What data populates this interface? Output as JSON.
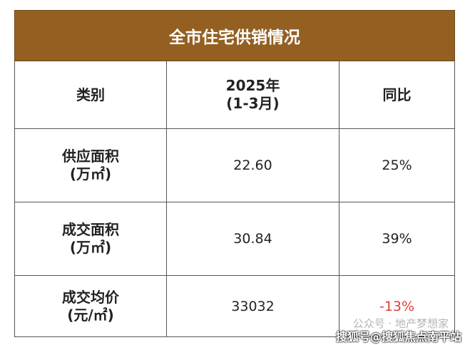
{
  "table": {
    "title": "全市住宅供销情况",
    "header": [
      [
        "类别"
      ],
      [
        "2025年",
        "(1-3月)"
      ],
      [
        "同比"
      ]
    ],
    "rows": [
      [
        [
          "供应面积",
          "(万㎡)"
        ],
        "22.60",
        "25%"
      ],
      [
        [
          "成交面积",
          "(万㎡)"
        ],
        "30.84",
        "39%"
      ],
      [
        [
          "成交均价",
          "(元/㎡)"
        ],
        "33032",
        "-13%"
      ]
    ]
  },
  "watermark": {
    "line1": "公众号 · 地产梦想家",
    "line2": "搜狐号@搜狐焦点南平站"
  }
}
